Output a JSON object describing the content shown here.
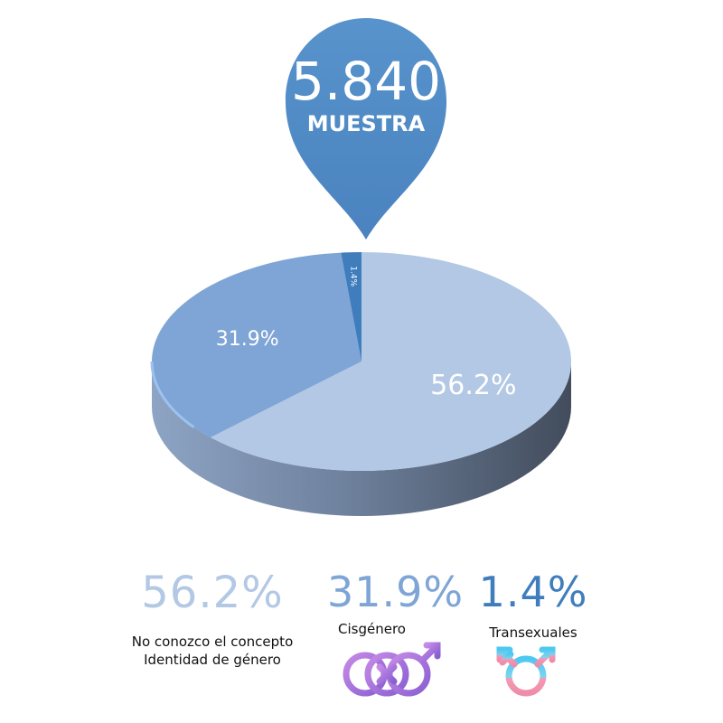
{
  "sample": {
    "value": "5.840",
    "label": "MUESTRA"
  },
  "chart_data": {
    "type": "pie",
    "categories": [
      "No conozco el concepto Identidad de género",
      "Cisgénero",
      "Transexuales"
    ],
    "values": [
      56.2,
      31.9,
      1.4
    ],
    "value_labels": [
      "56.2%",
      "31.9%",
      "1.4%"
    ],
    "colors": [
      "#b3c8e4",
      "#7ea5d6",
      "#3f7dbd"
    ]
  },
  "legend": [
    {
      "pct": "56.2%",
      "label": "No  conozco el concepto Identidad de género"
    },
    {
      "pct": "31.9%",
      "label": "Cisgénero",
      "icon": "intersex-symbol-icon"
    },
    {
      "pct": "1.4%",
      "label": "Transexuales",
      "icon": "transgender-symbol-icon"
    }
  ]
}
